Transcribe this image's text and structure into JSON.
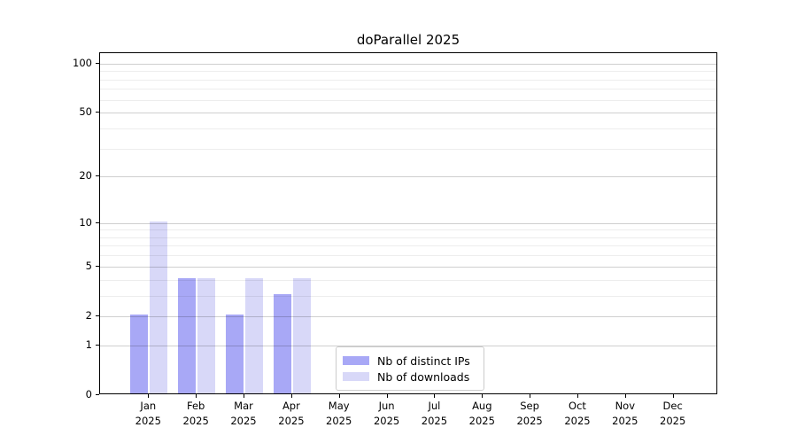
{
  "chart_data": {
    "type": "bar",
    "title": "doParallel 2025",
    "scale": "log1p",
    "categories": [
      "Jan 2025",
      "Feb 2025",
      "Mar 2025",
      "Apr 2025",
      "May 2025",
      "Jun 2025",
      "Jul 2025",
      "Aug 2025",
      "Sep 2025",
      "Oct 2025",
      "Nov 2025",
      "Dec 2025"
    ],
    "month_labels": [
      "Jan",
      "Feb",
      "Mar",
      "Apr",
      "May",
      "Jun",
      "Jul",
      "Aug",
      "Sep",
      "Oct",
      "Nov",
      "Dec"
    ],
    "year_label": "2025",
    "series": [
      {
        "name": "Nb of distinct IPs",
        "color": "#a8a8f6",
        "values": [
          2,
          4,
          2,
          3,
          0,
          0,
          0,
          0,
          0,
          0,
          0,
          0
        ]
      },
      {
        "name": "Nb of downloads",
        "color": "#d8d8f8",
        "values": [
          10,
          4,
          4,
          4,
          0,
          0,
          0,
          0,
          0,
          0,
          0,
          0
        ]
      }
    ],
    "y_ticks": [
      0,
      1,
      2,
      5,
      10,
      20,
      50,
      100
    ],
    "y_minor_gridlines": [
      3,
      4,
      6,
      7,
      8,
      9,
      30,
      40,
      60,
      70,
      80,
      90
    ],
    "ylim": [
      0,
      100
    ],
    "xlabel": "",
    "ylabel": "",
    "grid": "on",
    "legend_position": "lower center-left inside axes"
  }
}
